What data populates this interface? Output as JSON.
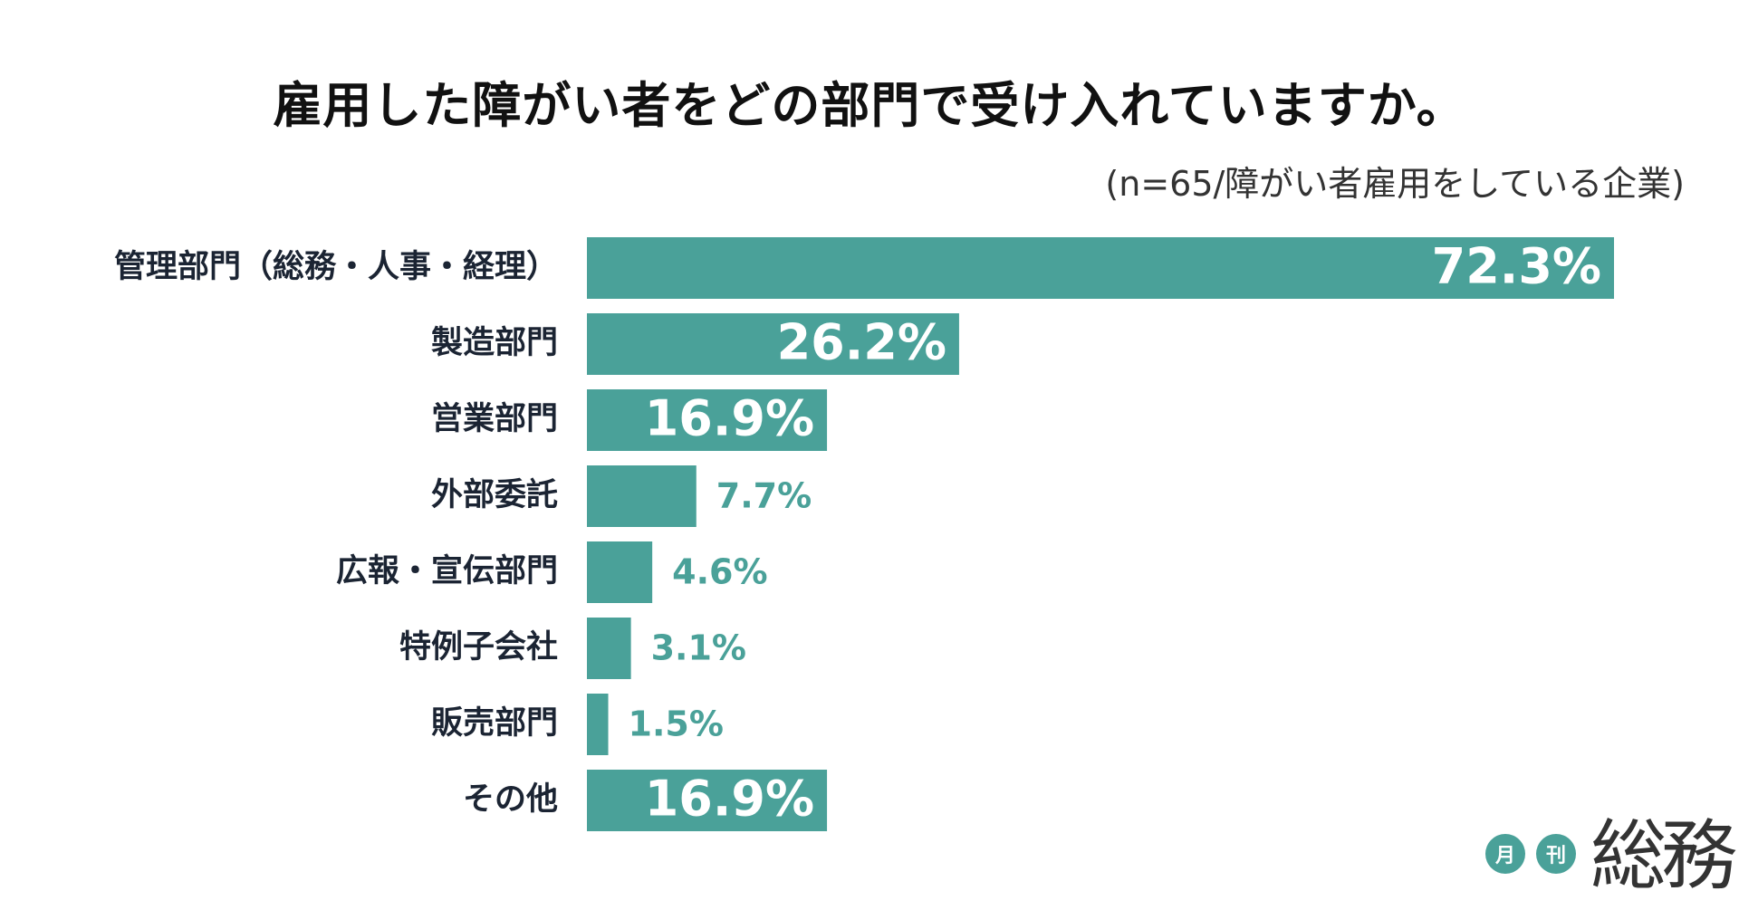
{
  "title": "雇用した障がい者をどの部門で受け入れていますか。",
  "subtitle": "(n=65/障がい者雇用をしている企業)",
  "colors": {
    "bar": "#4aa199",
    "label": "#1b2433",
    "inside_value": "#ffffff"
  },
  "logo": {
    "badge1": "月",
    "badge2": "刊",
    "word": "総務"
  },
  "chart_data": {
    "type": "bar",
    "orientation": "horizontal",
    "categories": [
      "管理部門（総務・人事・経理）",
      "製造部門",
      "営業部門",
      "外部委託",
      "広報・宣伝部門",
      "特例子会社",
      "販売部門",
      "その他"
    ],
    "values": [
      72.3,
      26.2,
      16.9,
      7.7,
      4.6,
      3.1,
      1.5,
      16.9
    ],
    "value_labels": [
      "72.3%",
      "26.2%",
      "16.9%",
      "7.7%",
      "4.6%",
      "3.1%",
      "1.5%",
      "16.9%"
    ],
    "unit": "%",
    "xlim": [
      0,
      72.3
    ],
    "grid": false,
    "legend": "none"
  }
}
